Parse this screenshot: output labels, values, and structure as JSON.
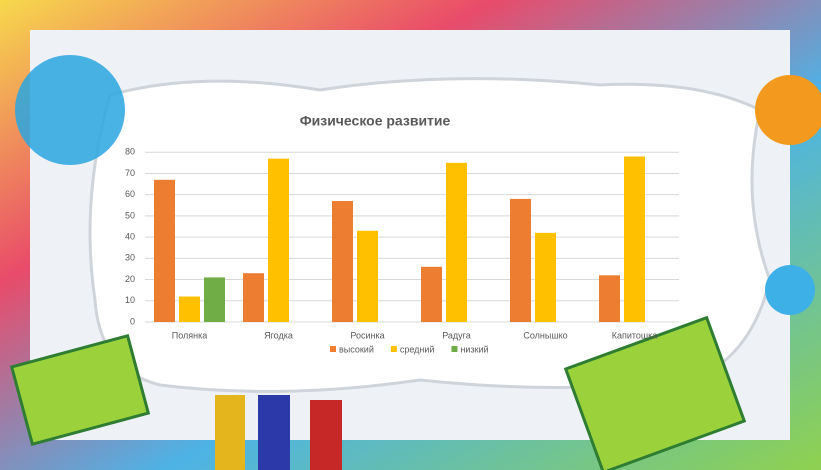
{
  "chart_data": {
    "type": "bar",
    "title": "Физическое развитие",
    "categories": [
      "Полянка",
      "Ягодка",
      "Росинка",
      "Радуга",
      "Солнышко",
      "Капитошка"
    ],
    "series": [
      {
        "name": "высокий",
        "color": "#ed7d31",
        "values": [
          67,
          23,
          57,
          26,
          58,
          22
        ]
      },
      {
        "name": "средний",
        "color": "#ffc000",
        "values": [
          12,
          77,
          43,
          75,
          42,
          78
        ]
      },
      {
        "name": "низкий",
        "color": "#70ad47",
        "values": [
          21,
          null,
          null,
          null,
          null,
          null
        ]
      }
    ],
    "ylim": [
      0,
      90
    ],
    "yticks": [
      0,
      10,
      20,
      30,
      40,
      50,
      60,
      70,
      80
    ],
    "grid": true,
    "legend": "bottom"
  }
}
